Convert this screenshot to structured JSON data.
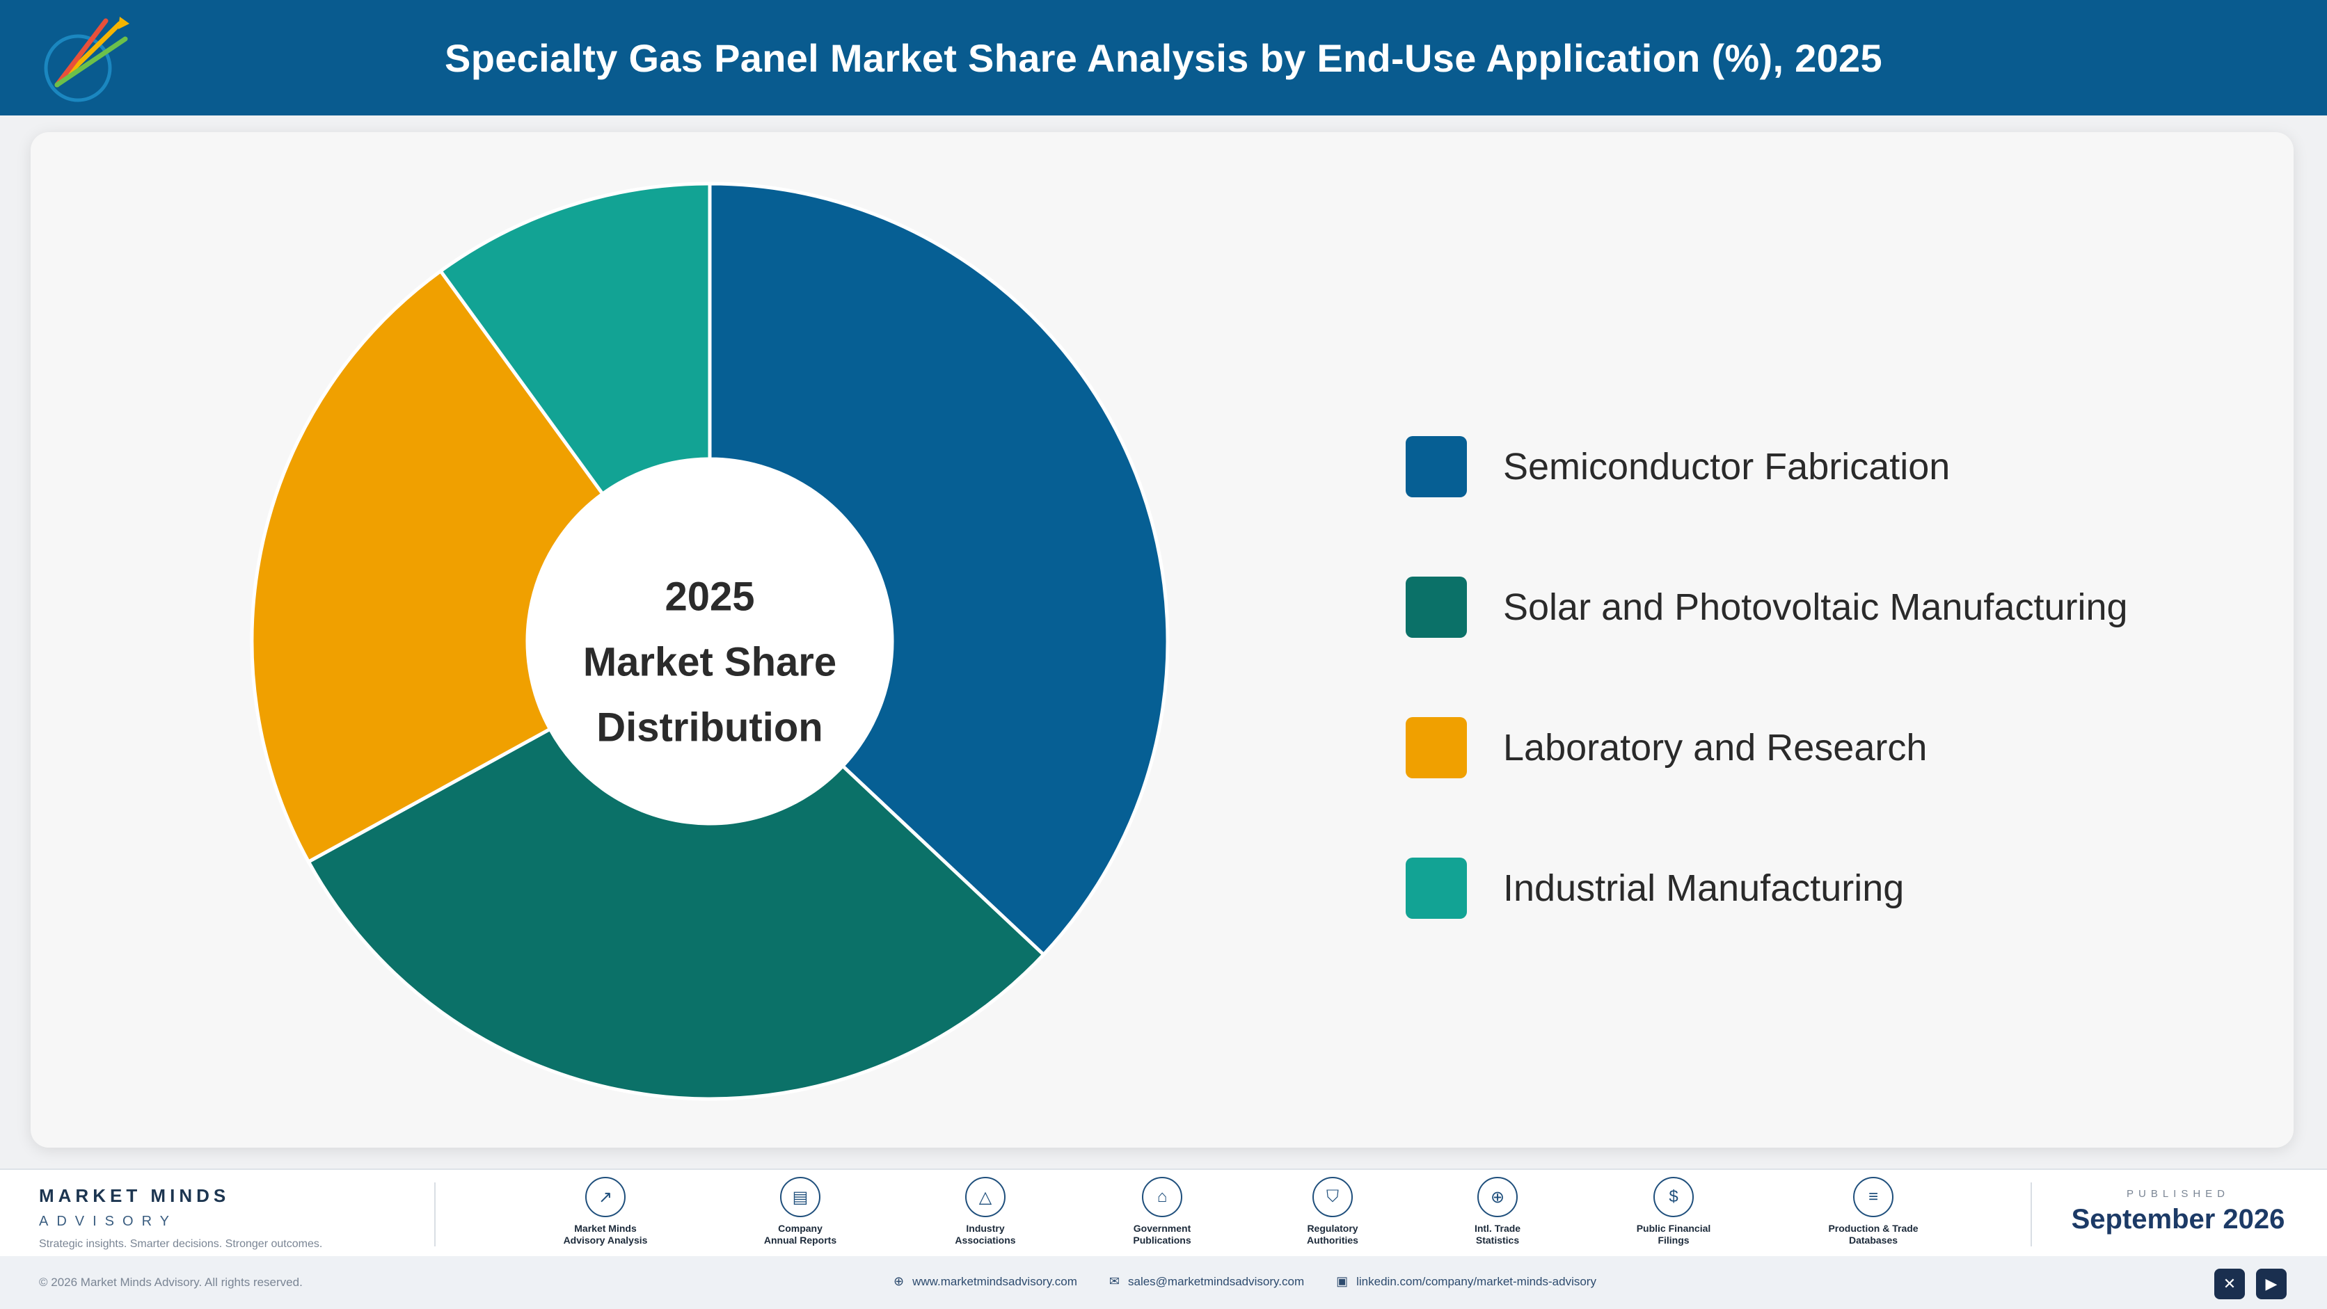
{
  "header": {
    "title": "Specialty Gas Panel Market Share Analysis by End-Use Application (%), 2025"
  },
  "chart_data": {
    "type": "pie",
    "variant": "donut",
    "center_label": [
      "2025",
      "Market Share",
      "Distribution"
    ],
    "categories": [
      "Semiconductor Fabrication",
      "Solar and Photovoltaic Manufacturing",
      "Laboratory and Research",
      "Industrial Manufacturing"
    ],
    "values": [
      37,
      30,
      23,
      10
    ],
    "colors": [
      "#065f94",
      "#0b7168",
      "#f0a000",
      "#12a394"
    ],
    "legend": "right"
  },
  "footer": {
    "brand_name": "MARKET MINDS",
    "brand_sub": "ADVISORY",
    "tagline": "Strategic insights. Smarter decisions. Stronger outcomes.",
    "sources": [
      {
        "line1": "Market Minds",
        "line2": "Advisory Analysis",
        "icon": "chart-icon"
      },
      {
        "line1": "Company",
        "line2": "Annual Reports",
        "icon": "document-icon"
      },
      {
        "line1": "Industry",
        "line2": "Associations",
        "icon": "network-icon"
      },
      {
        "line1": "Government",
        "line2": "Publications",
        "icon": "building-icon"
      },
      {
        "line1": "Regulatory",
        "line2": "Authorities",
        "icon": "shield-icon"
      },
      {
        "line1": "Intl. Trade",
        "line2": "Statistics",
        "icon": "globe-icon"
      },
      {
        "line1": "Public Financial",
        "line2": "Filings",
        "icon": "dollar-icon"
      },
      {
        "line1": "Production & Trade",
        "line2": "Databases",
        "icon": "database-icon"
      }
    ],
    "published_label": "PUBLISHED",
    "published_date": "September 2026"
  },
  "bottom": {
    "copyright": "© 2026 Market Minds Advisory. All rights reserved.",
    "website": "www.marketmindsadvisory.com",
    "email": "sales@marketmindsadvisory.com",
    "linkedin": "linkedin.com/company/market-minds-advisory"
  }
}
